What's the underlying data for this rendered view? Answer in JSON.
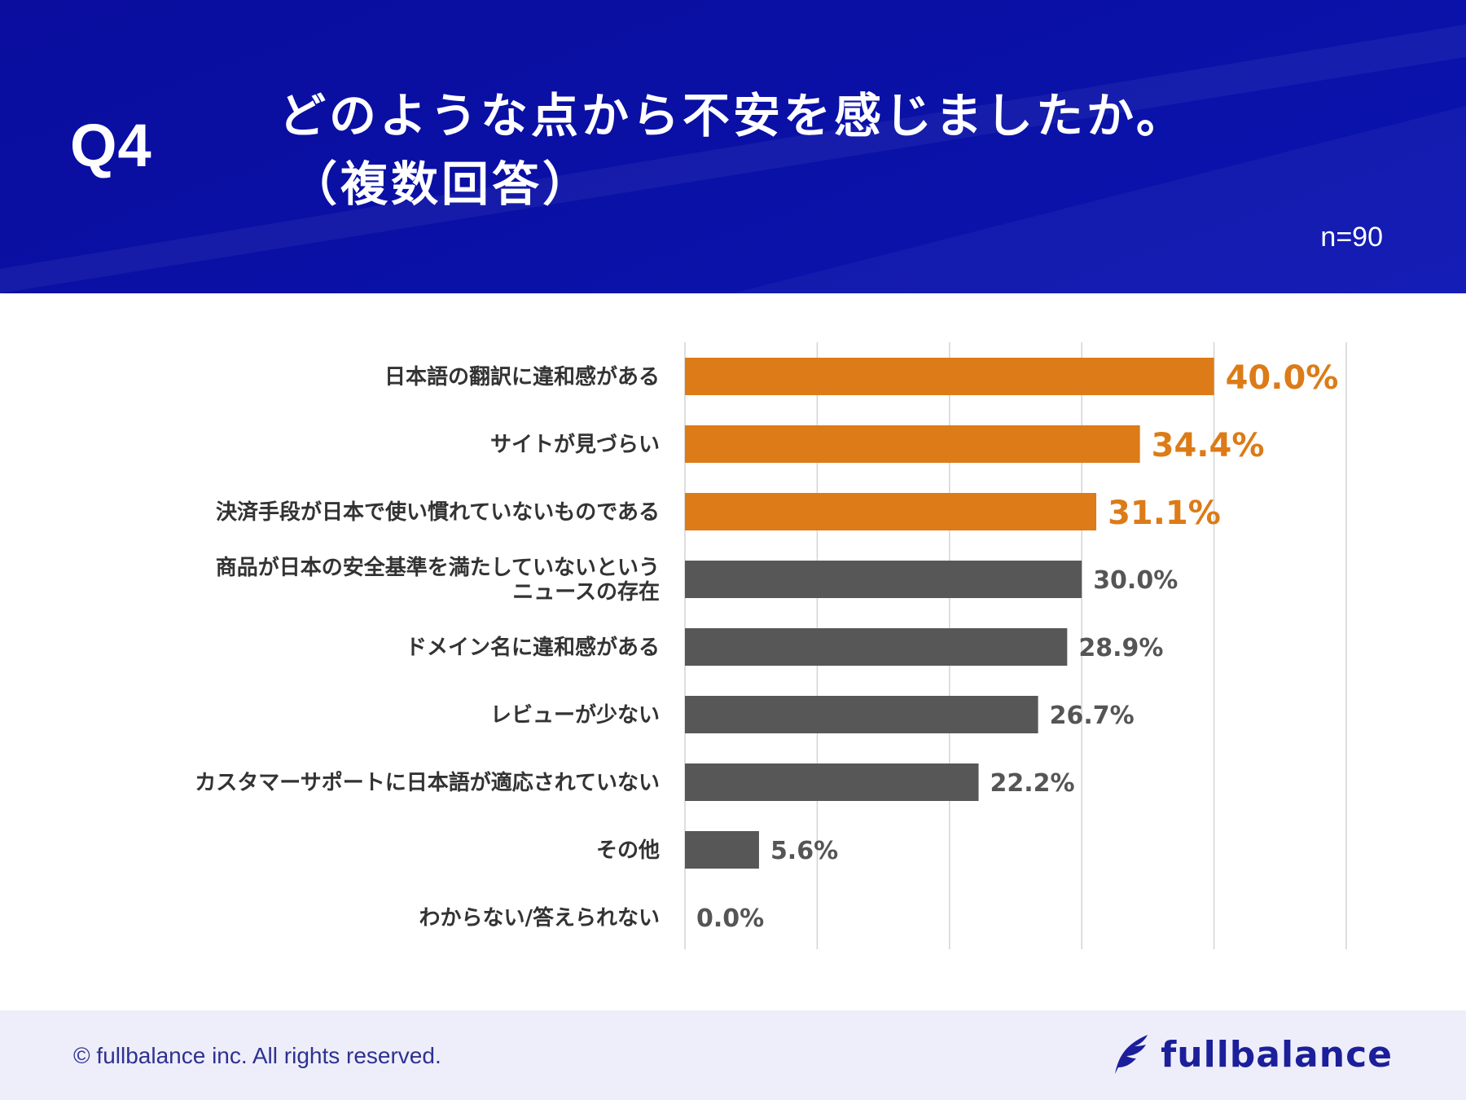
{
  "header": {
    "question_label": "Q4",
    "title_line1": "どのような点から不安を感じましたか。",
    "title_line2": "（複数回答）",
    "sample_size": "n=90"
  },
  "colors": {
    "header_bg": "#0a0fa3",
    "highlight_bar": "#dc7b17",
    "normal_bar": "#575757",
    "highlight_label": "#dc7b17",
    "normal_label": "#555555",
    "footer_bg": "#eeeefa",
    "brand": "#1b1f9a"
  },
  "chart_data": {
    "type": "bar",
    "orientation": "horizontal",
    "categories": [
      [
        "日本語の翻訳に違和感がある"
      ],
      [
        "サイトが見づらい"
      ],
      [
        "決済手段が日本で使い慣れていないものである"
      ],
      [
        "商品が日本の安全基準を満たしていないという",
        "ニュースの存在"
      ],
      [
        "ドメイン名に違和感がある"
      ],
      [
        "レビューが少ない"
      ],
      [
        "カスタマーサポートに日本語が適応されていない"
      ],
      [
        "その他"
      ],
      [
        "わからない/答えられない"
      ]
    ],
    "values": [
      40.0,
      34.4,
      31.1,
      30.0,
      28.9,
      26.7,
      22.2,
      5.6,
      0.0
    ],
    "value_labels": [
      "40.0%",
      "34.4%",
      "31.1%",
      "30.0%",
      "28.9%",
      "26.7%",
      "22.2%",
      "5.6%",
      "0.0%"
    ],
    "highlighted": [
      true,
      true,
      true,
      false,
      false,
      false,
      false,
      false,
      false
    ],
    "xlim": [
      0,
      50
    ],
    "grid_step": 10,
    "grid": true
  },
  "footer": {
    "copyright": "© fullbalance inc. All rights reserved.",
    "brand_name": "fullbalance",
    "brand_icon": "quill-logo-icon"
  }
}
